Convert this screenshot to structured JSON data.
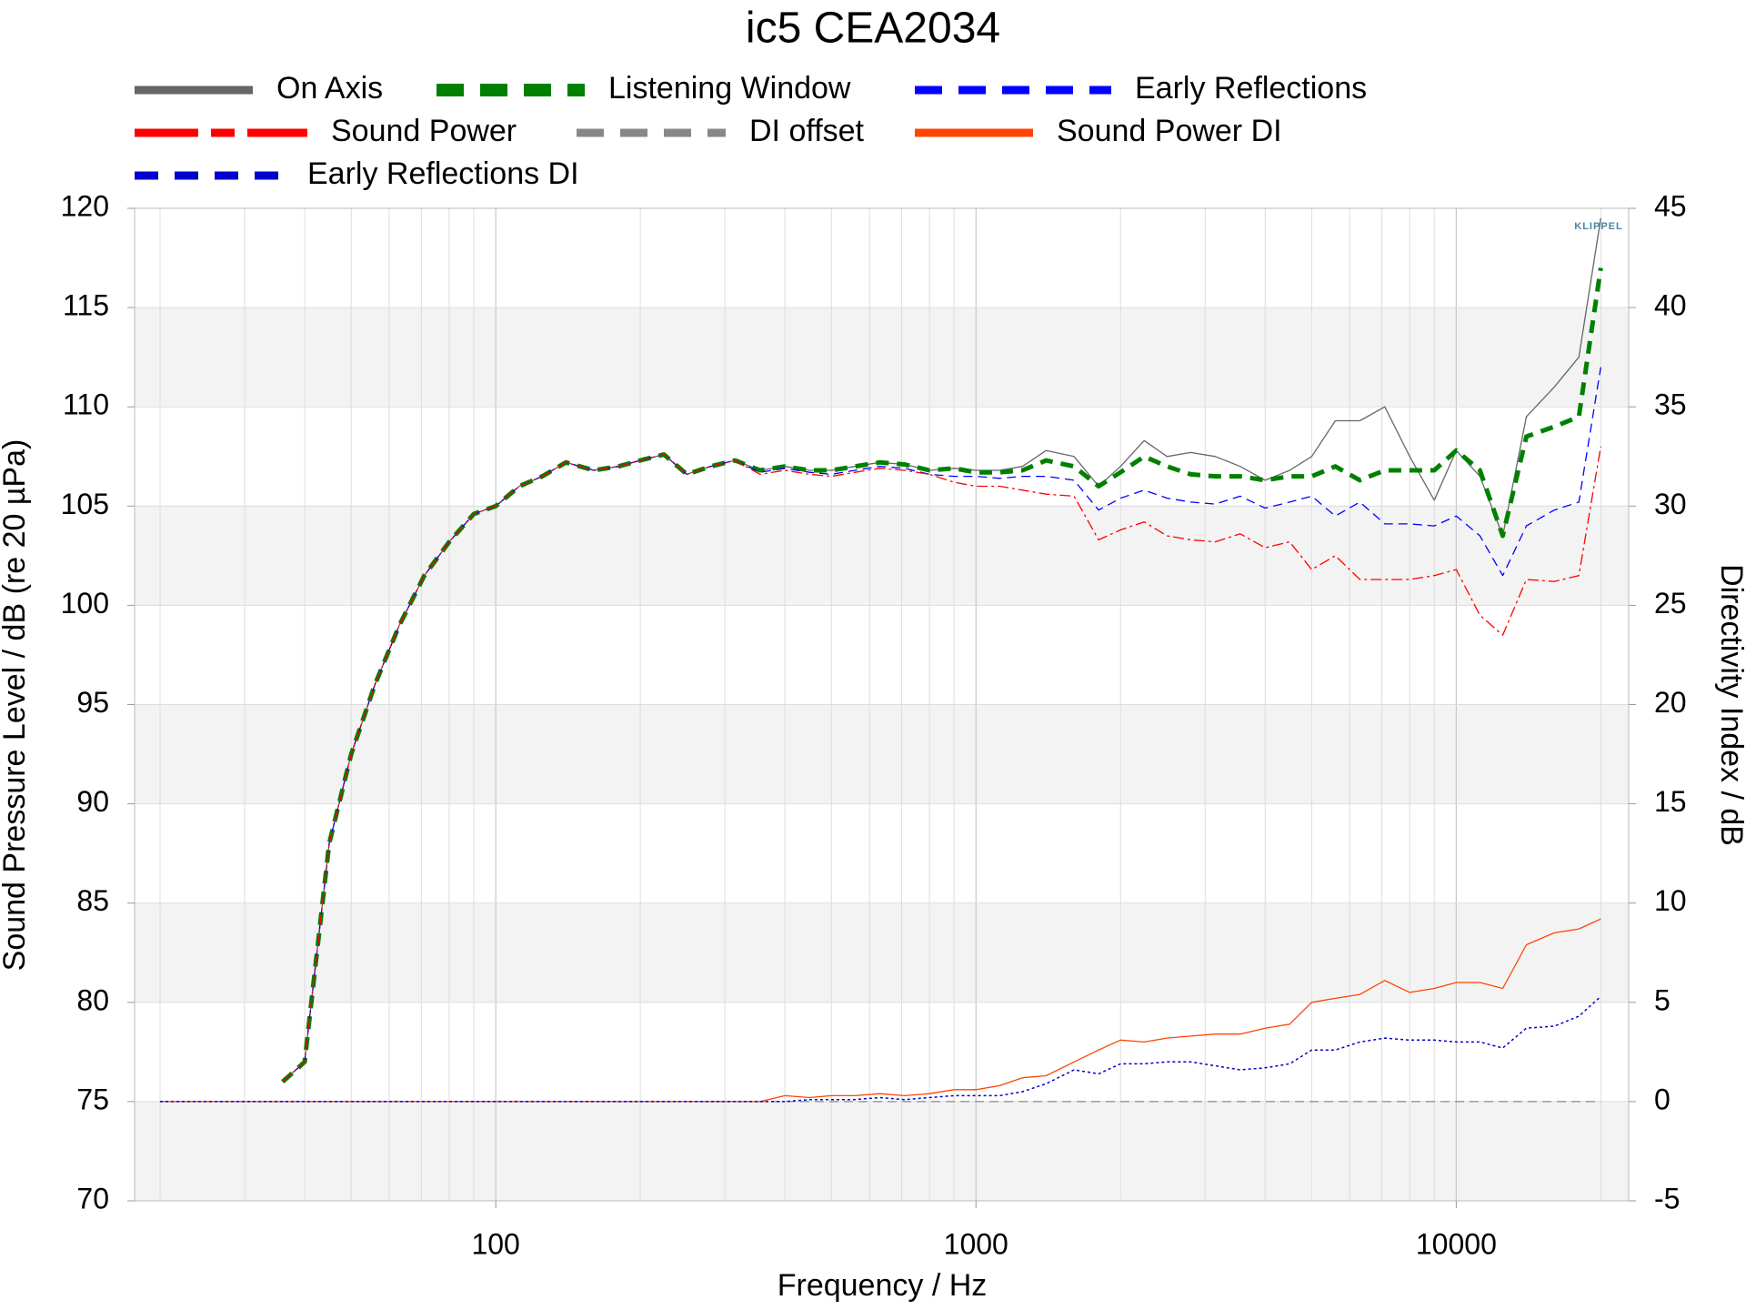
{
  "chart_data": {
    "type": "line",
    "title": "ic5 CEA2034",
    "x_label": "Frequency / Hz",
    "y_label": "Sound Pressure Level / dB (re 20 µPa)",
    "y2_label": "Directivity Index / dB",
    "watermark": "KLIPPEL",
    "xscale": "log",
    "xlim": [
      17.7,
      22860
    ],
    "xticks": [
      100,
      1000,
      10000
    ],
    "xminorticks": [
      20,
      30,
      40,
      50,
      60,
      70,
      80,
      90,
      200,
      300,
      400,
      500,
      600,
      700,
      800,
      900,
      2000,
      3000,
      4000,
      5000,
      6000,
      7000,
      8000,
      9000,
      20000
    ],
    "ylim": [
      70,
      120
    ],
    "yticks": [
      70,
      75,
      80,
      85,
      90,
      95,
      100,
      105,
      110,
      115,
      120
    ],
    "y2lim": [
      -5,
      45
    ],
    "y2ticks": [
      -5,
      0,
      5,
      10,
      15,
      20,
      25,
      30,
      35,
      40,
      45
    ],
    "grid": true,
    "x": [
      20,
      22,
      25,
      28,
      32,
      36,
      40,
      45,
      50,
      56,
      63,
      71,
      80,
      90,
      100,
      112,
      125,
      140,
      160,
      180,
      200,
      224,
      250,
      280,
      315,
      355,
      400,
      450,
      500,
      560,
      630,
      710,
      800,
      900,
      1000,
      1120,
      1250,
      1400,
      1600,
      1800,
      2000,
      2240,
      2500,
      2800,
      3150,
      3550,
      4000,
      4500,
      5000,
      5600,
      6300,
      7100,
      8000,
      9000,
      10000,
      11200,
      12500,
      14000,
      16000,
      18000,
      20000
    ],
    "series": [
      {
        "name": "On Axis",
        "color": "#666666",
        "style": "solid",
        "width": 1.3,
        "values": [
          null,
          null,
          null,
          null,
          null,
          76,
          77,
          88,
          92.5,
          96,
          99,
          101.5,
          103.2,
          104.6,
          105,
          106,
          106.5,
          107.2,
          106.8,
          107,
          107.3,
          107.6,
          106.6,
          107,
          107.3,
          106.8,
          107,
          106.8,
          106.8,
          107,
          107.2,
          107.1,
          106.8,
          106.9,
          106.8,
          106.8,
          107,
          107.8,
          107.5,
          106,
          107,
          108.3,
          107.5,
          107.7,
          107.5,
          107,
          106.3,
          106.8,
          107.5,
          109.3,
          109.3,
          110,
          107.5,
          105.3,
          107.8,
          106.5,
          103.5,
          109.5,
          111,
          112.5,
          119.5
        ]
      },
      {
        "name": "Listening Window",
        "color": "#008000",
        "style": "dashed",
        "width": 5,
        "values": [
          null,
          null,
          null,
          null,
          null,
          76,
          77,
          88,
          92.5,
          96,
          99,
          101.5,
          103.2,
          104.6,
          105,
          106,
          106.5,
          107.2,
          106.8,
          107,
          107.3,
          107.6,
          106.6,
          107,
          107.3,
          106.8,
          107,
          106.8,
          106.8,
          107,
          107.2,
          107.1,
          106.8,
          106.9,
          106.7,
          106.7,
          106.8,
          107.3,
          107,
          106,
          106.7,
          107.5,
          107,
          106.6,
          106.5,
          106.5,
          106.3,
          106.5,
          106.5,
          107,
          106.3,
          106.8,
          106.8,
          106.8,
          107.8,
          106.8,
          103.5,
          108.5,
          109,
          109.5,
          117
        ]
      },
      {
        "name": "Early Reflections",
        "color": "#0000ff",
        "style": "dashed",
        "width": 1.3,
        "values": [
          null,
          null,
          null,
          null,
          null,
          76,
          77,
          88,
          92.5,
          96,
          99,
          101.5,
          103.2,
          104.6,
          105,
          106,
          106.5,
          107.2,
          106.8,
          107,
          107.3,
          107.6,
          106.6,
          107,
          107.3,
          106.7,
          106.9,
          106.7,
          106.6,
          106.8,
          107,
          106.9,
          106.6,
          106.5,
          106.5,
          106.4,
          106.5,
          106.5,
          106.3,
          104.8,
          105.4,
          105.8,
          105.4,
          105.2,
          105.1,
          105.5,
          104.9,
          105.2,
          105.5,
          104.5,
          105.2,
          104.1,
          104.1,
          104,
          104.5,
          103.5,
          101.5,
          104,
          104.8,
          105.2,
          112
        ]
      },
      {
        "name": "Sound Power",
        "color": "#ff0000",
        "style": "dashdot",
        "width": 1.3,
        "values": [
          null,
          null,
          null,
          null,
          null,
          76,
          77,
          88,
          92.5,
          96,
          99,
          101.5,
          103.2,
          104.6,
          105,
          106,
          106.5,
          107.2,
          106.8,
          107,
          107.3,
          107.6,
          106.6,
          107,
          107.3,
          106.6,
          106.8,
          106.6,
          106.5,
          106.7,
          106.9,
          106.8,
          106.6,
          106.2,
          106,
          106,
          105.8,
          105.6,
          105.5,
          103.3,
          103.8,
          104.2,
          103.5,
          103.3,
          103.2,
          103.6,
          102.9,
          103.2,
          101.8,
          102.5,
          101.3,
          101.3,
          101.3,
          101.5,
          101.8,
          99.5,
          98.5,
          101.3,
          101.2,
          101.5,
          108
        ]
      },
      {
        "name": "DI offset",
        "color": "#888888",
        "style": "dashed",
        "width": 1.3,
        "axis": "y2",
        "values": [
          0,
          0,
          0,
          0,
          0,
          0,
          0,
          0,
          0,
          0,
          0,
          0,
          0,
          0,
          0,
          0,
          0,
          0,
          0,
          0,
          0,
          0,
          0,
          0,
          0,
          0,
          0,
          0,
          0,
          0,
          0,
          0,
          0,
          0,
          0,
          0,
          0,
          0,
          0,
          0,
          0,
          0,
          0,
          0,
          0,
          0,
          0,
          0,
          0,
          0,
          0,
          0,
          0,
          0,
          0,
          0,
          0,
          0,
          0,
          0,
          0
        ]
      },
      {
        "name": "Sound Power DI",
        "color": "#ff4500",
        "style": "solid",
        "width": 1.3,
        "axis": "y2",
        "values": [
          0,
          0,
          0,
          0,
          0,
          0,
          0,
          0,
          0,
          0,
          0,
          0,
          0,
          0,
          0,
          0,
          0,
          0,
          0,
          0,
          0,
          0,
          0,
          0,
          0,
          0,
          0.3,
          0.2,
          0.3,
          0.3,
          0.4,
          0.3,
          0.4,
          0.6,
          0.6,
          0.8,
          1.2,
          1.3,
          2,
          2.6,
          3.1,
          3,
          3.2,
          3.3,
          3.4,
          3.4,
          3.7,
          3.9,
          5,
          5.2,
          5.4,
          6.1,
          5.5,
          5.7,
          6,
          6,
          5.7,
          7.9,
          8.5,
          8.7,
          9.2
        ]
      },
      {
        "name": "Early Reflections DI",
        "color": "#0000cc",
        "style": "dotted",
        "width": 1.5,
        "axis": "y2",
        "values": [
          0,
          0,
          0,
          0,
          0,
          0,
          0,
          0,
          0,
          0,
          0,
          0,
          0,
          0,
          0,
          0,
          0,
          0,
          0,
          0,
          0,
          0,
          0,
          0,
          0,
          0,
          0,
          0.1,
          0.1,
          0.1,
          0.2,
          0.1,
          0.2,
          0.3,
          0.3,
          0.3,
          0.5,
          0.9,
          1.6,
          1.4,
          1.9,
          1.9,
          2,
          2,
          1.8,
          1.6,
          1.7,
          1.9,
          2.6,
          2.6,
          3,
          3.2,
          3.1,
          3.1,
          3,
          3,
          2.7,
          3.7,
          3.8,
          4.3,
          5.3
        ]
      }
    ]
  }
}
